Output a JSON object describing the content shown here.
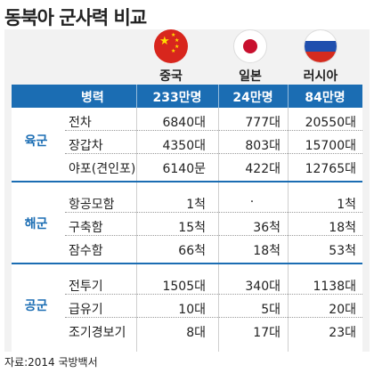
{
  "title": "동북아 군사력 비교",
  "countries": [
    "중국",
    "일본",
    "러시아"
  ],
  "flags": [
    "china-flag-icon",
    "japan-flag-icon",
    "russia-flag-icon"
  ],
  "header": {
    "label": "병력",
    "values": [
      "233만명",
      "24만명",
      "84만명"
    ]
  },
  "groups": [
    {
      "name": "육군",
      "rows": [
        {
          "label": "전차",
          "values": [
            "6840대",
            "777대",
            "20550대"
          ]
        },
        {
          "label": "장갑차",
          "values": [
            "4350대",
            "803대",
            "15700대"
          ]
        },
        {
          "label": "야포(견인포)",
          "values": [
            "6140문",
            "422대",
            "12765대"
          ]
        }
      ]
    },
    {
      "name": "해군",
      "rows": [
        {
          "label": "항공모함",
          "values": [
            "1척",
            "·",
            "1척"
          ]
        },
        {
          "label": "구축함",
          "values": [
            "15척",
            "36척",
            "18척"
          ]
        },
        {
          "label": "잠수함",
          "values": [
            "66척",
            "18척",
            "53척"
          ]
        }
      ]
    },
    {
      "name": "공군",
      "rows": [
        {
          "label": "전투기",
          "values": [
            "1505대",
            "340대",
            "1138대"
          ]
        },
        {
          "label": "급유기",
          "values": [
            "10대",
            "5대",
            "20대"
          ]
        },
        {
          "label": "조기경보기",
          "values": [
            "8대",
            "17대",
            "23대"
          ]
        }
      ]
    }
  ],
  "source": "자료:2014 국방백서",
  "colors": {
    "header": "#1b6db3",
    "group_text": "#1b6db3",
    "panel": "#f2f2f2"
  }
}
